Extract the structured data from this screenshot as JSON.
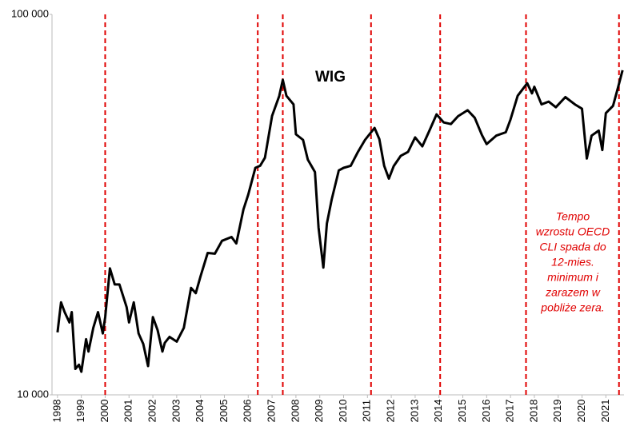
{
  "chart_data": {
    "type": "line",
    "log_scale_y": true,
    "xlim": [
      1997.77,
      2021.76
    ],
    "ylim": [
      10000,
      100000
    ],
    "xticks": [
      1998,
      1999,
      2000,
      2001,
      2002,
      2003,
      2004,
      2005,
      2006,
      2007,
      2008,
      2009,
      2010,
      2011,
      2012,
      2013,
      2014,
      2015,
      2016,
      2017,
      2018,
      2019,
      2020,
      2021
    ],
    "yticks": [
      {
        "value": 10000,
        "label": "10 000"
      },
      {
        "value": 100000,
        "label": "100 000"
      }
    ],
    "series": [
      {
        "name": "WIG",
        "color": "#000000",
        "x": [
          1998.0,
          1998.15,
          1998.3,
          1998.5,
          1998.6,
          1998.75,
          1998.9,
          1999.0,
          1999.2,
          1999.3,
          1999.5,
          1999.7,
          1999.9,
          2000.0,
          2000.2,
          2000.4,
          2000.6,
          2000.9,
          2001.0,
          2001.2,
          2001.4,
          2001.6,
          2001.8,
          2002.0,
          2002.2,
          2002.4,
          2002.5,
          2002.7,
          2003.0,
          2003.3,
          2003.6,
          2003.8,
          2004.0,
          2004.3,
          2004.6,
          2004.9,
          2005.3,
          2005.5,
          2005.8,
          2006.0,
          2006.3,
          2006.5,
          2006.7,
          2007.0,
          2007.3,
          2007.45,
          2007.6,
          2007.9,
          2008.0,
          2008.3,
          2008.5,
          2008.8,
          2008.95,
          2009.15,
          2009.3,
          2009.5,
          2009.8,
          2010.0,
          2010.3,
          2010.6,
          2010.9,
          2011.3,
          2011.5,
          2011.7,
          2011.9,
          2012.1,
          2012.4,
          2012.7,
          2013.0,
          2013.3,
          2013.6,
          2013.9,
          2014.2,
          2014.5,
          2014.8,
          2015.2,
          2015.5,
          2015.8,
          2016.0,
          2016.4,
          2016.8,
          2017.0,
          2017.3,
          2017.7,
          2017.9,
          2018.0,
          2018.3,
          2018.6,
          2018.9,
          2019.3,
          2019.7,
          2020.0,
          2020.2,
          2020.4,
          2020.7,
          2020.85,
          2021.0,
          2021.3,
          2021.5,
          2021.7
        ],
        "values": [
          14600,
          17500,
          16500,
          15500,
          16500,
          11700,
          12000,
          11500,
          14000,
          13000,
          15000,
          16500,
          14500,
          16000,
          21500,
          19500,
          19500,
          17000,
          15500,
          17500,
          14500,
          13600,
          11900,
          16000,
          14800,
          13000,
          13700,
          14200,
          13800,
          15000,
          19100,
          18500,
          20500,
          23600,
          23500,
          25400,
          26000,
          25000,
          30700,
          33600,
          39500,
          40000,
          42000,
          54100,
          61000,
          67300,
          61100,
          58000,
          48400,
          46800,
          41500,
          38500,
          27500,
          21600,
          28200,
          32600,
          38900,
          39500,
          40000,
          43500,
          46800,
          50300,
          47000,
          40000,
          37000,
          39900,
          42500,
          43500,
          47500,
          45000,
          49500,
          54600,
          52000,
          51500,
          54000,
          56000,
          53500,
          48200,
          45600,
          48000,
          49000,
          52900,
          61100,
          65900,
          62000,
          64500,
          58000,
          59000,
          57000,
          60600,
          58000,
          56500,
          41800,
          48000,
          49500,
          44000,
          55000,
          57500,
          64000,
          71300
        ]
      }
    ],
    "vlines": [
      2000.0,
      2006.4,
      2007.45,
      2011.15,
      2014.05,
      2017.65,
      2021.55
    ],
    "vline_color": "#e00000",
    "annotation": [
      "Tempo",
      "wzrostu OECD",
      "CLI spada do",
      "12-mies.",
      "minimum i",
      "zarazem w",
      "pobliże zera."
    ]
  }
}
